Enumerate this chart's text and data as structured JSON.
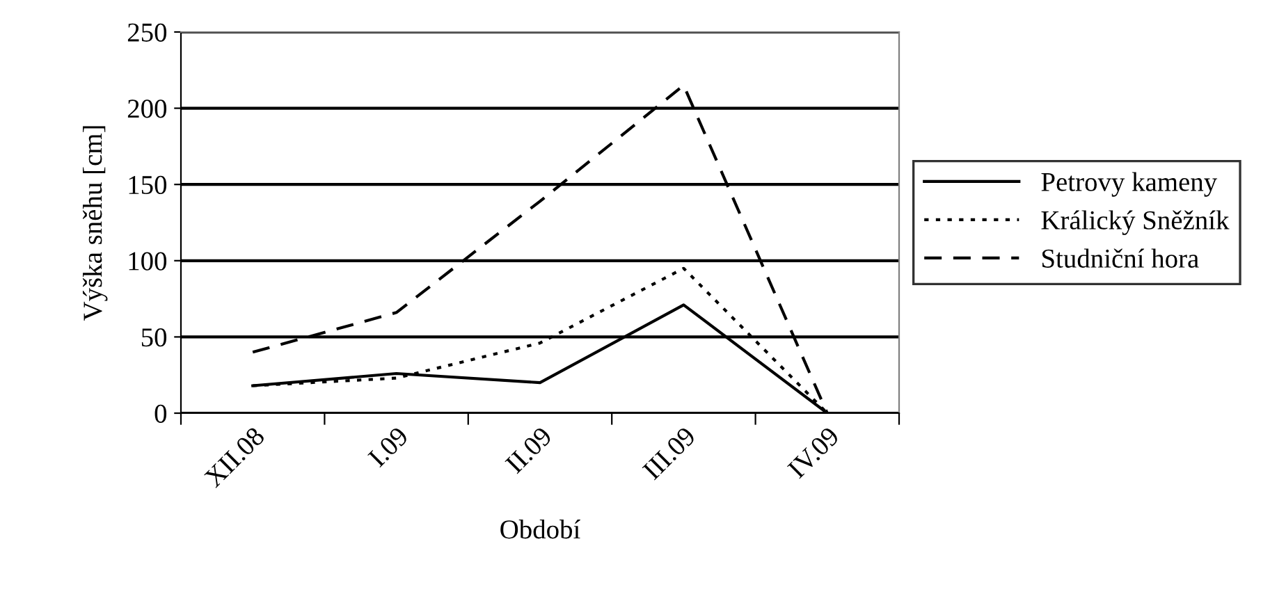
{
  "chart_data": {
    "type": "line",
    "xlabel": "Období",
    "ylabel": "Výška sněhu [cm]",
    "categories": [
      "XII.08",
      "I.09",
      "II.09",
      "III.09",
      "IV.09"
    ],
    "series": [
      {
        "name": "Petrovy kameny",
        "color": "#000000",
        "line_style": "solid",
        "values": [
          18,
          26,
          20,
          71,
          0
        ]
      },
      {
        "name": "Králický Sněžník",
        "color": "#000000",
        "line_style": "dotted",
        "values": [
          18,
          23,
          46,
          95,
          0
        ]
      },
      {
        "name": "Studniční hora",
        "color": "#000000",
        "line_style": "dashed",
        "values": [
          40,
          66,
          139,
          215,
          0
        ]
      }
    ],
    "ylim": [
      0,
      250
    ],
    "yticks": [
      0,
      50,
      100,
      150,
      200,
      250
    ],
    "grid": "y",
    "legend": "right",
    "marker": "none"
  }
}
